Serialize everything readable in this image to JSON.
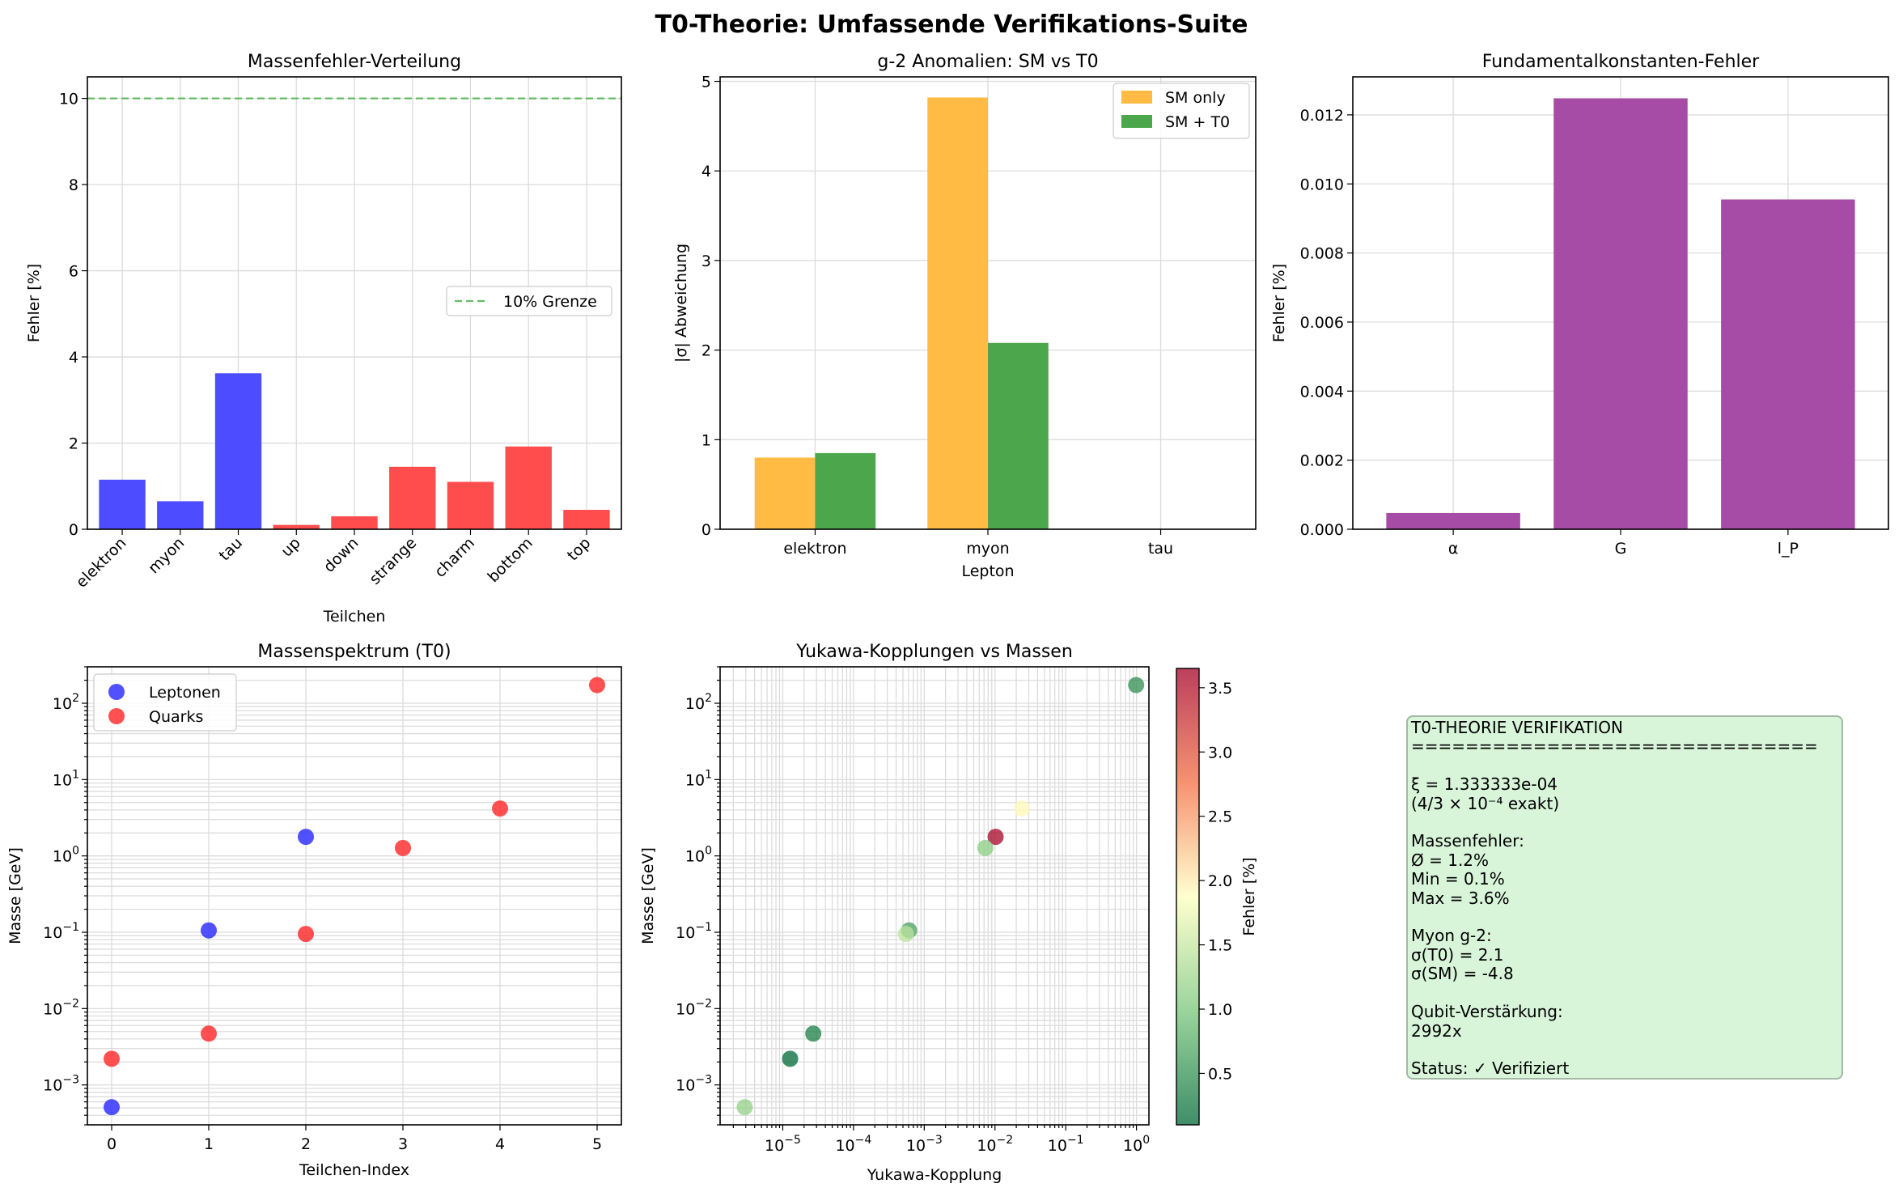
{
  "suptitle": "T0-Theorie: Umfassende Verifikations-Suite",
  "summary": {
    "lines": [
      "T0-THEORIE VERIFIKATION",
      "==============================",
      "",
      "ξ = 1.333333e-04",
      "(4/3 × 10⁻⁴ exakt)",
      "",
      "Massenfehler:",
      "Ø = 1.2%",
      "Min = 0.1%",
      "Max = 3.6%",
      "",
      "Myon g-2:",
      "σ(T0) = 2.1",
      "σ(SM) = -4.8",
      "",
      "Qubit-Verstärkung:",
      "2992x",
      "",
      "Status: ✓ Verifiziert"
    ]
  },
  "chart_data": [
    {
      "type": "bar",
      "title": "Massenfehler-Verteilung",
      "xlabel": "Teilchen",
      "ylabel": "Fehler [%]",
      "ylim": [
        0,
        10.5
      ],
      "yticks": [
        "0",
        "2",
        "4",
        "6",
        "8",
        "10"
      ],
      "categories": [
        "elektron",
        "myon",
        "tau",
        "up",
        "down",
        "strange",
        "charm",
        "bottom",
        "top"
      ],
      "values": [
        1.15,
        0.65,
        3.62,
        0.1,
        0.3,
        1.45,
        1.1,
        1.92,
        0.45
      ],
      "bar_colors": [
        "#4d4dff",
        "#4d4dff",
        "#4d4dff",
        "#ff4d4d",
        "#ff4d4d",
        "#ff4d4d",
        "#ff4d4d",
        "#ff4d4d",
        "#ff4d4d"
      ],
      "hline": {
        "y": 10,
        "label": "10% Grenze",
        "color": "#66bb66"
      },
      "legend": "center-right",
      "grid": true
    },
    {
      "type": "bar",
      "title": "g-2 Anomalien: SM vs T0",
      "xlabel": "Lepton",
      "ylabel": "|σ| Abweichung",
      "ylim": [
        0,
        5.05
      ],
      "yticks": [
        "0",
        "1",
        "2",
        "3",
        "4",
        "5"
      ],
      "categories": [
        "elektron",
        "myon",
        "tau"
      ],
      "series": [
        {
          "name": "SM only",
          "values": [
            0.8,
            4.82,
            0
          ],
          "color": "#ffbb44"
        },
        {
          "name": "SM + T0",
          "values": [
            0.85,
            2.08,
            0
          ],
          "color": "#4ca64c"
        }
      ],
      "legend": "top-right",
      "grid": true
    },
    {
      "type": "bar",
      "title": "Fundamentalkonstanten-Fehler",
      "xlabel": "",
      "ylabel": "Fehler [%]",
      "ylim": [
        0,
        0.0131
      ],
      "yticks": [
        "0.000",
        "0.002",
        "0.004",
        "0.006",
        "0.008",
        "0.010",
        "0.012"
      ],
      "categories": [
        "α",
        "G",
        "l_P"
      ],
      "values": [
        0.00047,
        0.01248,
        0.00955
      ],
      "color": "#a64ca6",
      "grid": true
    },
    {
      "type": "scatter",
      "title": "Massenspektrum (T0)",
      "xlabel": "Teilchen-Index",
      "ylabel": "Masse [GeV]",
      "yscale": "log",
      "xlim": [
        -0.25,
        5.25
      ],
      "ylim": [
        0.0003,
        300
      ],
      "xticks": [
        "0",
        "1",
        "2",
        "3",
        "4",
        "5"
      ],
      "series": [
        {
          "name": "Leptonen",
          "color": "#3333ff",
          "x": [
            0,
            1,
            2
          ],
          "y": [
            0.000511,
            0.1057,
            1.777
          ]
        },
        {
          "name": "Quarks",
          "color": "#ff3333",
          "x": [
            0,
            1,
            2,
            3,
            4,
            5
          ],
          "y": [
            0.0022,
            0.0047,
            0.095,
            1.27,
            4.18,
            173
          ]
        }
      ],
      "legend": "top-left",
      "grid": true
    },
    {
      "type": "scatter",
      "title": "Yukawa-Kopplungen vs Massen",
      "xlabel": "Yukawa-Kopplung",
      "ylabel": "Masse [GeV]",
      "xscale": "log",
      "yscale": "log",
      "xlim": [
        1.3e-06,
        1.5
      ],
      "ylim": [
        0.0003,
        300
      ],
      "colorbar": {
        "label": "Fehler [%]",
        "range": [
          0.1,
          3.65
        ],
        "ticks": [
          "0.5",
          "1.0",
          "1.5",
          "2.0",
          "2.5",
          "3.0",
          "3.5"
        ]
      },
      "points": [
        {
          "x": 2.9e-06,
          "y": 0.000511,
          "err": 1.15
        },
        {
          "x": 0.00061,
          "y": 0.1057,
          "err": 0.65
        },
        {
          "x": 0.0102,
          "y": 1.777,
          "err": 3.62
        },
        {
          "x": 1.27e-05,
          "y": 0.0022,
          "err": 0.1
        },
        {
          "x": 2.7e-05,
          "y": 0.0047,
          "err": 0.3
        },
        {
          "x": 0.00055,
          "y": 0.095,
          "err": 1.45
        },
        {
          "x": 0.0073,
          "y": 1.27,
          "err": 1.1
        },
        {
          "x": 0.024,
          "y": 4.18,
          "err": 1.92
        },
        {
          "x": 0.99,
          "y": 173,
          "err": 0.45
        }
      ],
      "grid": true
    }
  ]
}
